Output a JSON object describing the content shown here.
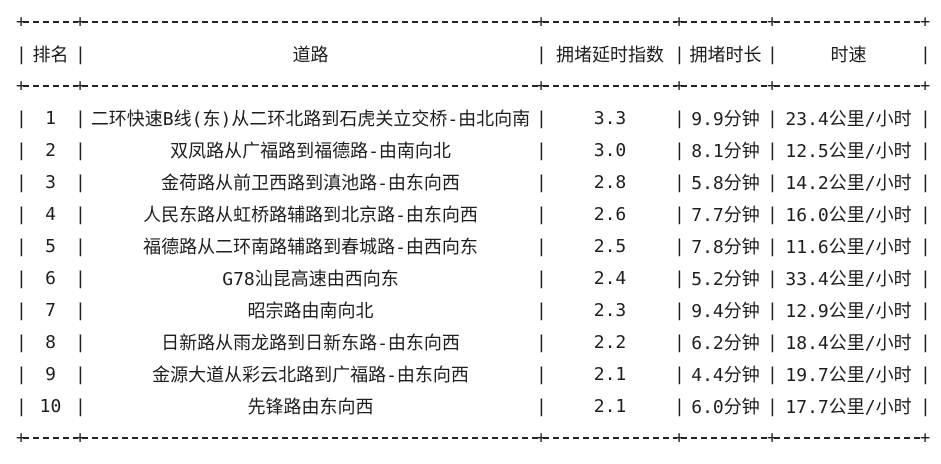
{
  "colors": {
    "background": "#ffffff",
    "text": "#1e1e1e",
    "border": "#222222"
  },
  "glyphs": {
    "pipe": "|",
    "plus": "+"
  },
  "table": {
    "columns": {
      "rank": "排名",
      "road": "道路",
      "index": "拥堵延时指数",
      "duration": "拥堵时长",
      "speed": "时速"
    },
    "rows": [
      {
        "rank": "1",
        "road": "二环快速B线(东)从二环北路到石虎关立交桥-由北向南",
        "index": "3.3",
        "duration": "9.9分钟",
        "speed": "23.4公里/小时"
      },
      {
        "rank": "2",
        "road": "双凤路从广福路到福德路-由南向北",
        "index": "3.0",
        "duration": "8.1分钟",
        "speed": "12.5公里/小时"
      },
      {
        "rank": "3",
        "road": "金荷路从前卫西路到滇池路-由东向西",
        "index": "2.8",
        "duration": "5.8分钟",
        "speed": "14.2公里/小时"
      },
      {
        "rank": "4",
        "road": "人民东路从虹桥路辅路到北京路-由东向西",
        "index": "2.6",
        "duration": "7.7分钟",
        "speed": "16.0公里/小时"
      },
      {
        "rank": "5",
        "road": "福德路从二环南路辅路到春城路-由西向东",
        "index": "2.5",
        "duration": "7.8分钟",
        "speed": "11.6公里/小时"
      },
      {
        "rank": "6",
        "road": "G78汕昆高速由西向东",
        "index": "2.4",
        "duration": "5.2分钟",
        "speed": "33.4公里/小时"
      },
      {
        "rank": "7",
        "road": "昭宗路由南向北",
        "index": "2.3",
        "duration": "9.4分钟",
        "speed": "12.9公里/小时"
      },
      {
        "rank": "8",
        "road": "日新路从雨龙路到日新东路-由东向西",
        "index": "2.2",
        "duration": "6.2分钟",
        "speed": "18.4公里/小时"
      },
      {
        "rank": "9",
        "road": "金源大道从彩云北路到广福路-由东向西",
        "index": "2.1",
        "duration": "4.4分钟",
        "speed": "19.7公里/小时"
      },
      {
        "rank": "10",
        "road": "先锋路由东向西",
        "index": "2.1",
        "duration": "6.0分钟",
        "speed": "17.7公里/小时"
      }
    ]
  }
}
